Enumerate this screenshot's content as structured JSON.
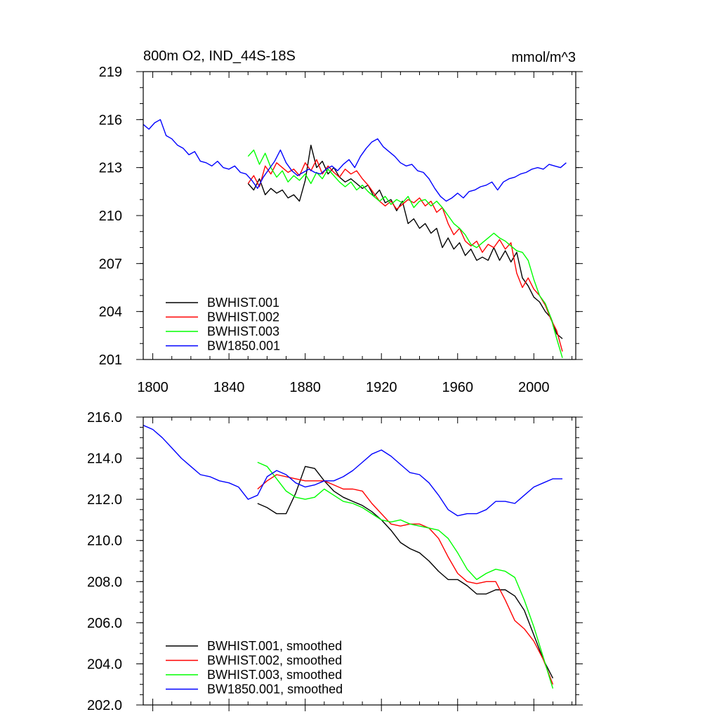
{
  "figure": {
    "title_left": "800m O2, IND_44S-18S",
    "title_right": "mmol/m^3"
  },
  "chart_data": [
    {
      "type": "line",
      "title": "800m O2, IND_44S-18S",
      "units": "mmol/m^3",
      "xlabel": "",
      "ylabel": "",
      "xlim": [
        1795,
        2022
      ],
      "ylim": [
        201,
        219
      ],
      "xticks": [
        1800,
        1840,
        1880,
        1920,
        1960,
        2000
      ],
      "xtick_labels": [
        "1800",
        "1840",
        "1880",
        "1920",
        "1960",
        "2000"
      ],
      "yticks": [
        201,
        204,
        207,
        210,
        213,
        216,
        219
      ],
      "ytick_labels": [
        "201",
        "204",
        "207",
        "210",
        "213",
        "216",
        "219"
      ],
      "legend_position": "bottom-left",
      "series": [
        {
          "name": "BWHIST.001",
          "color": "#000000",
          "x": [
            1850,
            1853,
            1856,
            1859,
            1862,
            1865,
            1868,
            1871,
            1874,
            1877,
            1880,
            1883,
            1886,
            1889,
            1892,
            1895,
            1898,
            1901,
            1904,
            1907,
            1910,
            1913,
            1916,
            1919,
            1922,
            1925,
            1928,
            1931,
            1934,
            1937,
            1940,
            1943,
            1946,
            1949,
            1952,
            1955,
            1958,
            1961,
            1964,
            1967,
            1970,
            1973,
            1976,
            1979,
            1982,
            1985,
            1988,
            1991,
            1994,
            1997,
            2000,
            2003,
            2006,
            2009,
            2012,
            2015
          ],
          "values": [
            212.0,
            211.6,
            212.3,
            211.3,
            211.7,
            211.4,
            211.6,
            211.1,
            211.3,
            210.9,
            212.2,
            214.4,
            213.0,
            213.4,
            212.6,
            213.0,
            212.4,
            212.1,
            212.3,
            212.0,
            211.7,
            211.9,
            211.2,
            211.6,
            210.8,
            211.0,
            210.3,
            210.9,
            209.5,
            209.8,
            209.2,
            209.5,
            208.9,
            209.2,
            208.0,
            208.6,
            207.9,
            208.3,
            207.5,
            207.9,
            207.2,
            207.4,
            207.2,
            208.0,
            207.2,
            207.8,
            207.1,
            207.7,
            206.1,
            205.6,
            204.9,
            204.6,
            204.0,
            203.6,
            202.6,
            202.3
          ]
        },
        {
          "name": "BWHIST.002",
          "color": "#ff0000",
          "x": [
            1850,
            1853,
            1856,
            1859,
            1862,
            1865,
            1868,
            1871,
            1874,
            1877,
            1880,
            1883,
            1886,
            1889,
            1892,
            1895,
            1898,
            1901,
            1904,
            1907,
            1910,
            1913,
            1916,
            1919,
            1922,
            1925,
            1928,
            1931,
            1934,
            1937,
            1940,
            1943,
            1946,
            1949,
            1952,
            1955,
            1958,
            1961,
            1964,
            1967,
            1970,
            1973,
            1976,
            1979,
            1982,
            1985,
            1988,
            1991,
            1994,
            1997,
            2000,
            2003,
            2006,
            2009,
            2012,
            2015
          ],
          "values": [
            212.0,
            212.5,
            211.8,
            213.1,
            212.6,
            213.3,
            213.0,
            212.7,
            212.9,
            212.5,
            213.3,
            212.8,
            213.5,
            212.6,
            213.1,
            212.7,
            212.4,
            212.9,
            212.6,
            212.8,
            212.3,
            211.9,
            211.4,
            210.9,
            210.6,
            210.9,
            210.4,
            210.7,
            211.0,
            210.8,
            211.1,
            210.6,
            210.9,
            210.2,
            210.5,
            209.5,
            208.8,
            209.2,
            208.4,
            208.1,
            208.4,
            207.7,
            208.2,
            208.0,
            208.5,
            207.9,
            208.3,
            206.4,
            205.5,
            206.1,
            205.4,
            205.0,
            204.4,
            203.5,
            202.8,
            201.5
          ]
        },
        {
          "name": "BWHIST.003",
          "color": "#00ff00",
          "x": [
            1850,
            1853,
            1856,
            1859,
            1862,
            1865,
            1868,
            1871,
            1874,
            1877,
            1880,
            1883,
            1886,
            1889,
            1892,
            1895,
            1898,
            1901,
            1904,
            1907,
            1910,
            1913,
            1916,
            1919,
            1922,
            1925,
            1928,
            1931,
            1934,
            1937,
            1940,
            1943,
            1946,
            1949,
            1952,
            1955,
            1958,
            1961,
            1964,
            1967,
            1970,
            1973,
            1976,
            1979,
            1982,
            1985,
            1988,
            1991,
            1994,
            1997,
            2000,
            2003,
            2006,
            2009,
            2012,
            2015
          ],
          "values": [
            213.7,
            214.1,
            213.2,
            213.9,
            213.0,
            212.4,
            212.8,
            212.1,
            212.5,
            212.2,
            212.6,
            212.0,
            212.7,
            212.3,
            212.9,
            212.5,
            212.1,
            211.8,
            212.1,
            211.6,
            211.9,
            211.5,
            211.2,
            210.9,
            211.2,
            210.7,
            211.0,
            210.8,
            211.2,
            210.5,
            210.9,
            211.0,
            210.6,
            210.9,
            210.5,
            210.0,
            209.5,
            209.2,
            208.8,
            208.2,
            208.0,
            208.3,
            208.6,
            208.9,
            208.6,
            208.4,
            208.1,
            207.8,
            207.7,
            207.2,
            206.0,
            205.0,
            204.5,
            203.6,
            202.3,
            201.1
          ]
        },
        {
          "name": "BW1850.001",
          "color": "#0000ff",
          "x": [
            1795,
            1798,
            1801,
            1804,
            1807,
            1810,
            1813,
            1816,
            1819,
            1822,
            1825,
            1828,
            1831,
            1834,
            1837,
            1840,
            1843,
            1846,
            1849,
            1852,
            1855,
            1858,
            1861,
            1864,
            1867,
            1870,
            1873,
            1876,
            1879,
            1882,
            1885,
            1888,
            1891,
            1894,
            1897,
            1900,
            1903,
            1906,
            1909,
            1912,
            1915,
            1918,
            1921,
            1924,
            1927,
            1930,
            1933,
            1936,
            1939,
            1942,
            1945,
            1948,
            1951,
            1954,
            1957,
            1960,
            1963,
            1966,
            1969,
            1972,
            1975,
            1978,
            1981,
            1984,
            1987,
            1990,
            1993,
            1996,
            1999,
            2002,
            2005,
            2008,
            2011,
            2014,
            2017
          ],
          "values": [
            215.7,
            215.4,
            215.8,
            216.0,
            215.0,
            214.8,
            214.4,
            214.2,
            213.8,
            214.0,
            213.4,
            213.3,
            213.1,
            213.4,
            213.0,
            212.9,
            213.1,
            212.7,
            212.6,
            212.2,
            211.7,
            212.4,
            212.9,
            213.4,
            214.1,
            213.3,
            212.8,
            212.5,
            212.7,
            212.9,
            212.7,
            212.6,
            212.9,
            213.1,
            212.8,
            213.2,
            213.5,
            213.0,
            213.7,
            214.2,
            214.6,
            214.8,
            214.3,
            214.0,
            213.7,
            213.3,
            213.1,
            213.2,
            212.8,
            212.7,
            212.3,
            211.7,
            211.2,
            210.9,
            211.1,
            211.4,
            211.1,
            211.5,
            211.6,
            211.8,
            211.9,
            212.1,
            211.6,
            212.1,
            212.3,
            212.4,
            212.6,
            212.7,
            212.9,
            213.0,
            212.9,
            213.2,
            213.1,
            213.0,
            213.3
          ]
        }
      ]
    },
    {
      "type": "line",
      "title": "",
      "xlabel": "",
      "ylabel": "",
      "xlim": [
        1795,
        2022
      ],
      "ylim": [
        202,
        216
      ],
      "xticks": [
        1800,
        1840,
        1880,
        1920,
        1960,
        2000
      ],
      "yticks": [
        202,
        204,
        206,
        208,
        210,
        212,
        214,
        216
      ],
      "ytick_labels": [
        "202.0",
        "204.0",
        "206.0",
        "208.0",
        "210.0",
        "212.0",
        "214.0",
        "216.0"
      ],
      "legend_position": "bottom-left",
      "series": [
        {
          "name": "BWHIST.001, smoothed",
          "color": "#000000",
          "x": [
            1855,
            1860,
            1865,
            1870,
            1875,
            1880,
            1885,
            1890,
            1895,
            1900,
            1905,
            1910,
            1915,
            1920,
            1925,
            1930,
            1935,
            1940,
            1945,
            1950,
            1955,
            1960,
            1965,
            1970,
            1975,
            1980,
            1985,
            1990,
            1995,
            2000,
            2005,
            2010
          ],
          "values": [
            211.8,
            211.6,
            211.3,
            211.3,
            212.3,
            213.6,
            213.5,
            212.9,
            212.4,
            212.1,
            211.9,
            211.7,
            211.4,
            211.0,
            210.5,
            209.9,
            209.6,
            209.4,
            209.0,
            208.5,
            208.1,
            208.1,
            207.8,
            207.4,
            207.4,
            207.6,
            207.6,
            207.3,
            206.6,
            205.4,
            204.2,
            203.3
          ]
        },
        {
          "name": "BWHIST.002, smoothed",
          "color": "#ff0000",
          "x": [
            1855,
            1860,
            1865,
            1870,
            1875,
            1880,
            1885,
            1890,
            1895,
            1900,
            1905,
            1910,
            1915,
            1920,
            1925,
            1930,
            1935,
            1940,
            1945,
            1950,
            1955,
            1960,
            1965,
            1970,
            1975,
            1980,
            1985,
            1990,
            1995,
            2000,
            2005,
            2010
          ],
          "values": [
            212.5,
            212.9,
            213.2,
            213.1,
            213.0,
            212.9,
            212.9,
            212.9,
            212.7,
            212.5,
            212.5,
            212.4,
            211.8,
            211.3,
            210.8,
            210.7,
            210.8,
            210.8,
            210.6,
            210.1,
            209.2,
            208.4,
            208.0,
            207.9,
            208.0,
            208.0,
            207.1,
            206.1,
            205.7,
            205.1,
            204.2,
            203.0
          ]
        },
        {
          "name": "BWHIST.003, smoothed",
          "color": "#00ff00",
          "x": [
            1855,
            1860,
            1865,
            1870,
            1875,
            1880,
            1885,
            1890,
            1895,
            1900,
            1905,
            1910,
            1915,
            1920,
            1925,
            1930,
            1935,
            1940,
            1945,
            1950,
            1955,
            1960,
            1965,
            1970,
            1975,
            1980,
            1985,
            1990,
            1995,
            2000,
            2005,
            2010
          ],
          "values": [
            213.8,
            213.6,
            213.0,
            212.4,
            212.1,
            212.0,
            212.1,
            212.5,
            212.2,
            211.9,
            211.8,
            211.6,
            211.3,
            211.0,
            210.9,
            211.0,
            210.8,
            210.7,
            210.6,
            210.5,
            210.1,
            209.4,
            208.6,
            208.1,
            208.4,
            208.6,
            208.5,
            208.2,
            207.1,
            205.8,
            204.3,
            202.8
          ]
        },
        {
          "name": "BW1850.001, smoothed",
          "color": "#0000ff",
          "x": [
            1795,
            1800,
            1805,
            1810,
            1815,
            1820,
            1825,
            1830,
            1835,
            1840,
            1845,
            1850,
            1855,
            1860,
            1865,
            1870,
            1875,
            1880,
            1885,
            1890,
            1895,
            1900,
            1905,
            1910,
            1915,
            1920,
            1925,
            1930,
            1935,
            1940,
            1945,
            1950,
            1955,
            1960,
            1965,
            1970,
            1975,
            1980,
            1985,
            1990,
            1995,
            2000,
            2005,
            2010,
            2015
          ],
          "values": [
            215.6,
            215.4,
            215.0,
            214.5,
            214.0,
            213.6,
            213.2,
            213.1,
            212.9,
            212.8,
            212.6,
            212.0,
            212.2,
            213.1,
            213.4,
            213.2,
            212.8,
            212.6,
            212.7,
            212.9,
            212.9,
            213.1,
            213.4,
            213.8,
            214.2,
            214.4,
            214.1,
            213.7,
            213.3,
            213.2,
            212.8,
            212.2,
            211.5,
            211.2,
            211.3,
            211.3,
            211.5,
            211.9,
            211.9,
            211.8,
            212.2,
            212.6,
            212.8,
            213.0,
            213.0
          ]
        }
      ]
    }
  ]
}
